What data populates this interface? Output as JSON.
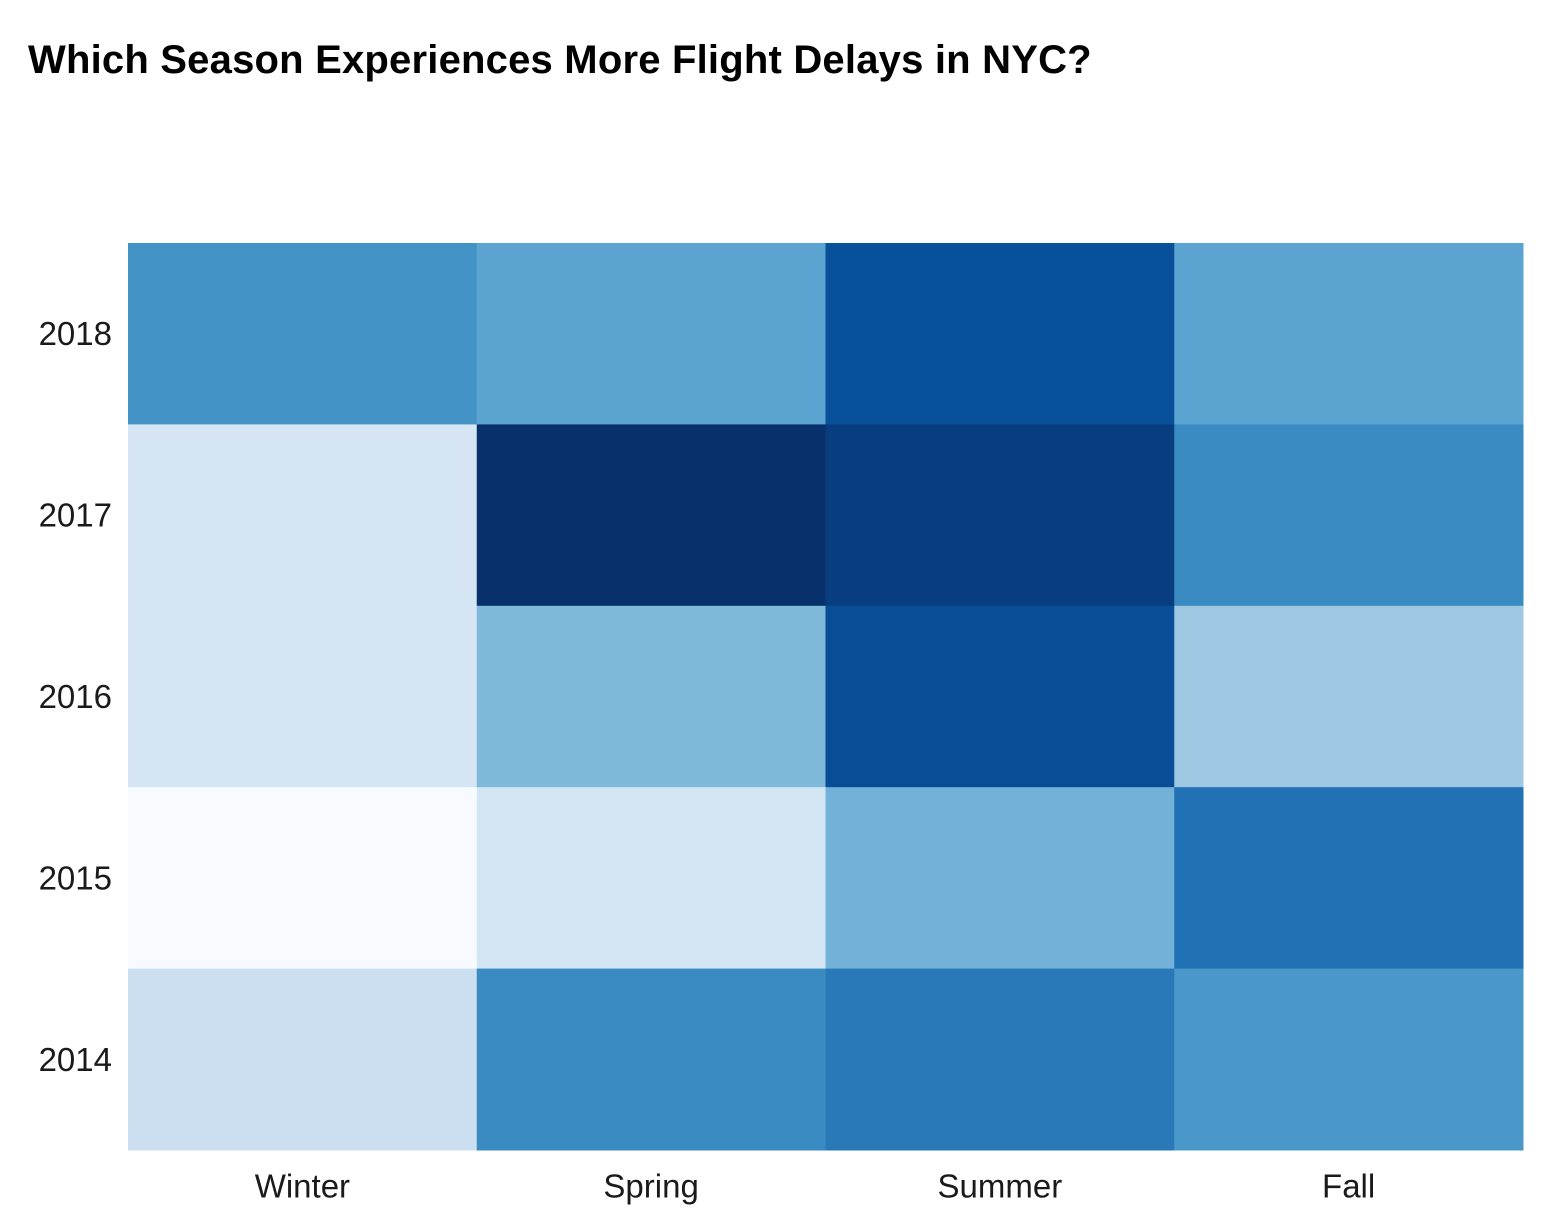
{
  "chart_data": {
    "type": "heatmap",
    "title": "Which Season Experiences More Flight Delays in NYC?",
    "xlabel": "",
    "ylabel": "",
    "x_categories": [
      "Winter",
      "Spring",
      "Summer",
      "Fall"
    ],
    "y_categories": [
      "2018",
      "2017",
      "2016",
      "2015",
      "2014"
    ],
    "values": [
      [
        0.62,
        0.55,
        0.88,
        0.55
      ],
      [
        0.17,
        1.0,
        0.95,
        0.65
      ],
      [
        0.17,
        0.45,
        0.89,
        0.38
      ],
      [
        0.0,
        0.18,
        0.48,
        0.75
      ],
      [
        0.22,
        0.65,
        0.72,
        0.6
      ]
    ],
    "value_range": [
      0,
      1
    ],
    "colorscale": "Blues",
    "color_stops": [
      "#f7fbff",
      "#deebf7",
      "#c6dbef",
      "#9ecae1",
      "#6baed6",
      "#4292c6",
      "#2171b5",
      "#08519c",
      "#08306b"
    ],
    "colorbar": false,
    "grid": false,
    "legend": "none"
  }
}
